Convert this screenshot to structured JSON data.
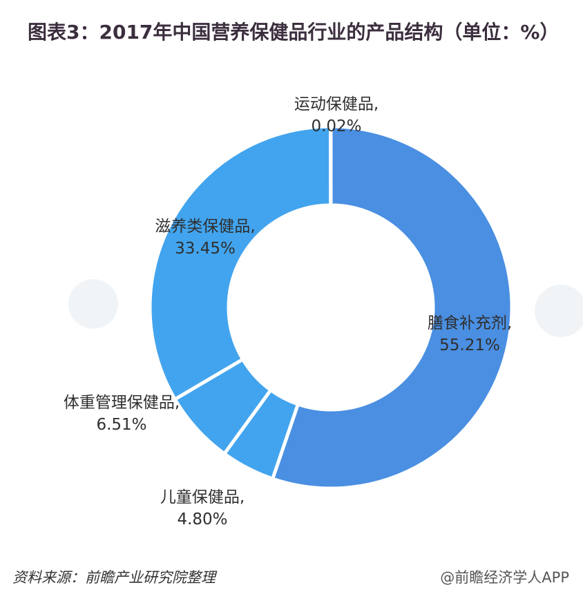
{
  "title": "图表3：2017年中国营养保健品行业的产品结构（单位：%）",
  "colors": {
    "slice_main": "#4a8fe2",
    "slice_other": "#42a4ee",
    "separator": "#ffffff"
  },
  "chart_data": {
    "type": "pie",
    "variant": "donut",
    "slices": [
      {
        "name": "膳食补充剂",
        "value": 55.21,
        "label_pct": "55.21%"
      },
      {
        "name": "儿童保健品",
        "value": 4.8,
        "label_pct": "4.80%"
      },
      {
        "name": "体重管理保健品",
        "value": 6.51,
        "label_pct": "6.51%"
      },
      {
        "name": "滋养类保健品",
        "value": 33.45,
        "label_pct": "33.45%"
      },
      {
        "name": "运动保健品",
        "value": 0.02,
        "label_pct": "0.02%"
      }
    ],
    "start_angle": "top",
    "direction": "clockwise",
    "legend": "none"
  },
  "footer": {
    "source": "资料来源：前瞻产业研究院整理",
    "credit": "@前瞻经济学人APP"
  }
}
